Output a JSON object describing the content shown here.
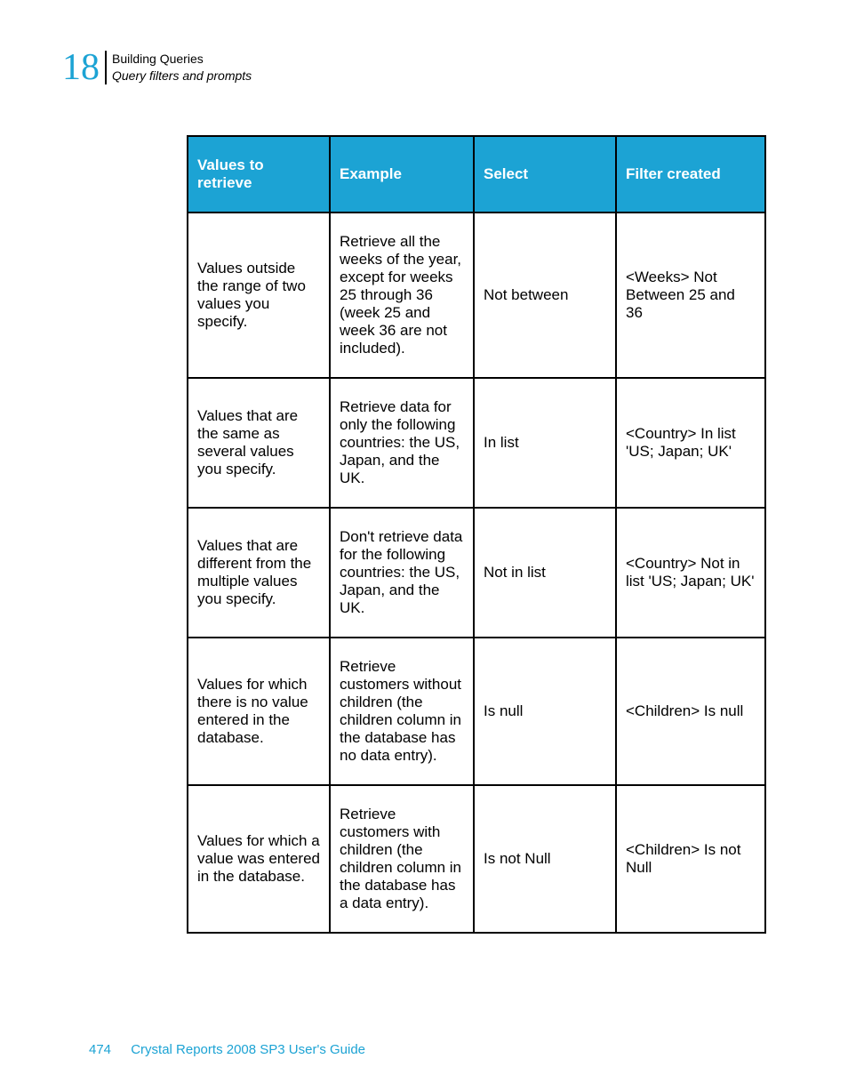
{
  "header": {
    "chapter_number": "18",
    "breadcrumb_top": "Building Queries",
    "breadcrumb_sub": "Query filters and prompts"
  },
  "table": {
    "columns": [
      "Values to retrieve",
      "Example",
      "Select",
      "Filter created"
    ],
    "rows": [
      {
        "values": "Values outside the range of two values you specify.",
        "example": "Retrieve all the weeks of the year, except for weeks 25 through 36 (week 25 and week 36 are not included).",
        "select": "Not between",
        "filter": "<Weeks> Not Between 25 and 36"
      },
      {
        "values": "Values that are the same as several values you specify.",
        "example": "Retrieve data for only the following countries: the US, Japan, and the UK.",
        "select": "In list",
        "filter": "<Country> In list 'US; Japan; UK'"
      },
      {
        "values": "Values that are different from the multiple values you specify.",
        "example": "Don't retrieve data for the following countries: the US, Japan, and the UK.",
        "select": "Not in list",
        "filter": "<Country> Not in list 'US; Japan; UK'"
      },
      {
        "values": "Values for which there is no value entered in the database.",
        "example": "Retrieve customers without children (the children column in the database has no data entry).",
        "select": "Is null",
        "filter": "<Children> Is null"
      },
      {
        "values": "Values for which a value was entered in the database.",
        "example": "Retrieve customers with children (the children column in the database has a data entry).",
        "select": "Is not Null",
        "filter": "<Children> Is not Null"
      }
    ]
  },
  "footer": {
    "page_number": "474",
    "doc_title": "Crystal Reports 2008 SP3 User's Guide"
  }
}
